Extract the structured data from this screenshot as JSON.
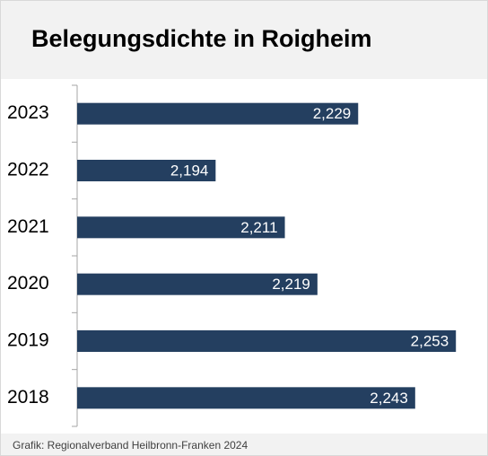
{
  "chart_data": {
    "type": "hbar",
    "title": "Belegungsdichte in Roigheim",
    "categories": [
      "2023",
      "2022",
      "2021",
      "2020",
      "2019",
      "2018"
    ],
    "values": [
      2.229,
      2.194,
      2.211,
      2.219,
      2.253,
      2.243
    ],
    "value_labels": [
      "2,229",
      "2,194",
      "2,211",
      "2,219",
      "2,253",
      "2,243"
    ],
    "color": "#243f60",
    "xlim": [
      2.16,
      2.26
    ],
    "source": "Grafik: Regionalverband Heilbronn-Franken 2024"
  }
}
